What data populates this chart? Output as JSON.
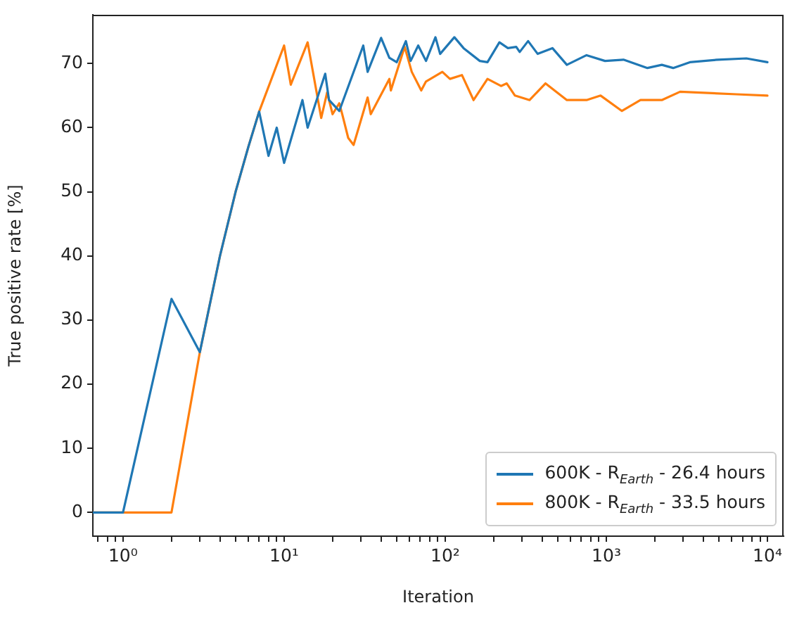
{
  "chart_data": {
    "type": "line",
    "xlabel": "Iteration",
    "ylabel": "True positive rate [%]",
    "log": "x",
    "grid": false,
    "legend": "bottom right",
    "marker": "none",
    "line_style": "solid",
    "xlim": [
      0.65,
      12600
    ],
    "ylim": [
      -3.7,
      77.6
    ],
    "xticks": [
      {
        "value": 1,
        "label": "10⁰"
      },
      {
        "value": 10,
        "label": "10¹"
      },
      {
        "value": 100,
        "label": "10²"
      },
      {
        "value": 1000,
        "label": "10³"
      },
      {
        "value": 10000,
        "label": "10⁴"
      },
      {
        "value": 0.7,
        "label": null
      },
      {
        "value": 0.8,
        "label": null
      },
      {
        "value": 0.9,
        "label": null
      },
      {
        "value": 2,
        "label": null
      },
      {
        "value": 3,
        "label": null
      },
      {
        "value": 4,
        "label": null
      },
      {
        "value": 5,
        "label": null
      },
      {
        "value": 6,
        "label": null
      },
      {
        "value": 7,
        "label": null
      },
      {
        "value": 8,
        "label": null
      },
      {
        "value": 9,
        "label": null
      },
      {
        "value": 20,
        "label": null
      },
      {
        "value": 30,
        "label": null
      },
      {
        "value": 40,
        "label": null
      },
      {
        "value": 50,
        "label": null
      },
      {
        "value": 60,
        "label": null
      },
      {
        "value": 70,
        "label": null
      },
      {
        "value": 80,
        "label": null
      },
      {
        "value": 90,
        "label": null
      },
      {
        "value": 200,
        "label": null
      },
      {
        "value": 300,
        "label": null
      },
      {
        "value": 400,
        "label": null
      },
      {
        "value": 500,
        "label": null
      },
      {
        "value": 600,
        "label": null
      },
      {
        "value": 700,
        "label": null
      },
      {
        "value": 800,
        "label": null
      },
      {
        "value": 900,
        "label": null
      },
      {
        "value": 2000,
        "label": null
      },
      {
        "value": 3000,
        "label": null
      },
      {
        "value": 4000,
        "label": null
      },
      {
        "value": 5000,
        "label": null
      },
      {
        "value": 6000,
        "label": null
      },
      {
        "value": 7000,
        "label": null
      },
      {
        "value": 8000,
        "label": null
      },
      {
        "value": 9000,
        "label": null
      }
    ],
    "yticks": [
      0,
      10,
      20,
      30,
      40,
      50,
      60,
      70
    ],
    "series": [
      {
        "name": "600K - R$_{Earth}$ - 26.4 hours",
        "color": "#1f77b4",
        "x": [
          0.65,
          1,
          2,
          3,
          4,
          5,
          6,
          7,
          8,
          9,
          10,
          13,
          14,
          18,
          19,
          22,
          31,
          33,
          40,
          45,
          50,
          57,
          61,
          68,
          76,
          87,
          93,
          114,
          130,
          164,
          183,
          217,
          245,
          276,
          290,
          327,
          375,
          463,
          569,
          754,
          982,
          1278,
          1800,
          2210,
          2600,
          3300,
          4930,
          7400,
          10000
        ],
        "values": [
          0,
          0,
          33.3,
          25,
          40,
          50,
          57,
          62.5,
          55.6,
          60,
          54.5,
          64.3,
          60,
          68.4,
          64.3,
          62.6,
          72.8,
          68.7,
          74,
          70.9,
          70.2,
          73.5,
          70.4,
          72.8,
          70.4,
          74.1,
          71.5,
          74.1,
          72.4,
          70.4,
          70.2,
          73.3,
          72.4,
          72.6,
          71.8,
          73.5,
          71.5,
          72.4,
          69.8,
          71.3,
          70.4,
          70.6,
          69.3,
          69.8,
          69.3,
          70.2,
          70.6,
          70.8,
          70.2
        ]
      },
      {
        "name": "800K - R$_{Earth}$ - 33.5 hours",
        "color": "#ff7f0e",
        "x": [
          0.65,
          1,
          2,
          3,
          4,
          5,
          6,
          7,
          10,
          11,
          14,
          17,
          18.5,
          20,
          22,
          23,
          25,
          27,
          33,
          34.5,
          45,
          46,
          56,
          62,
          71,
          76,
          96,
          107,
          127,
          150,
          183,
          222,
          241,
          271,
          334,
          419,
          569,
          754,
          922,
          1250,
          1630,
          2210,
          2870,
          4290,
          6440,
          10000
        ],
        "values": [
          0,
          0,
          0,
          25,
          40,
          50,
          57,
          62.5,
          72.8,
          66.7,
          73.3,
          61.5,
          65.5,
          62.1,
          63.8,
          62,
          58.4,
          57.3,
          64.7,
          62.1,
          67.6,
          65.8,
          72.6,
          68.7,
          65.8,
          67.2,
          68.7,
          67.6,
          68.2,
          64.3,
          67.6,
          66.5,
          66.9,
          65,
          64.3,
          66.9,
          64.3,
          64.3,
          65,
          62.6,
          64.3,
          64.3,
          65.6,
          65.4,
          65.2,
          65
        ]
      }
    ]
  }
}
